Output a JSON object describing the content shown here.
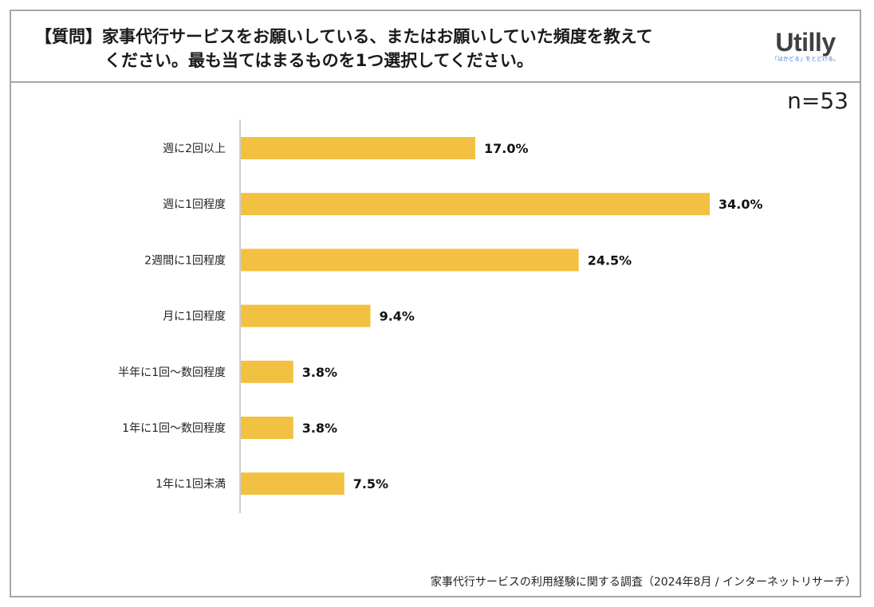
{
  "header": {
    "question_tag": "【質問】",
    "question_line1": "家事代行サービスをお願いしている、またはお願いしていた頻度を教えて",
    "question_line2": "ください。最も当てはまるものを1つ選択してください。"
  },
  "logo": {
    "wordmark": "Utilly",
    "tagline": "「はかどる」をとどける。"
  },
  "sample_size": "n=53",
  "footer": {
    "source": "家事代行サービスの利用経験に関する調査（2024年8月 / インターネットリサーチ）"
  },
  "colors": {
    "bar": "#f2c141",
    "axis": "#bfbfbf",
    "frame": "#a6a6a6"
  },
  "chart_data": {
    "type": "bar",
    "orientation": "horizontal",
    "title": "",
    "xlabel": "",
    "ylabel": "",
    "xlim": [
      0,
      34
    ],
    "categories": [
      "週に2回以上",
      "週に1回程度",
      "2週間に1回程度",
      "月に1回程度",
      "半年に1回〜数回程度",
      "1年に1回〜数回程度",
      "1年に1回未満"
    ],
    "values": [
      17.0,
      34.0,
      24.5,
      9.4,
      3.8,
      3.8,
      7.5
    ],
    "value_labels": [
      "17.0%",
      "34.0%",
      "24.5%",
      "9.4%",
      "3.8%",
      "3.8%",
      "7.5%"
    ],
    "grid": false
  }
}
